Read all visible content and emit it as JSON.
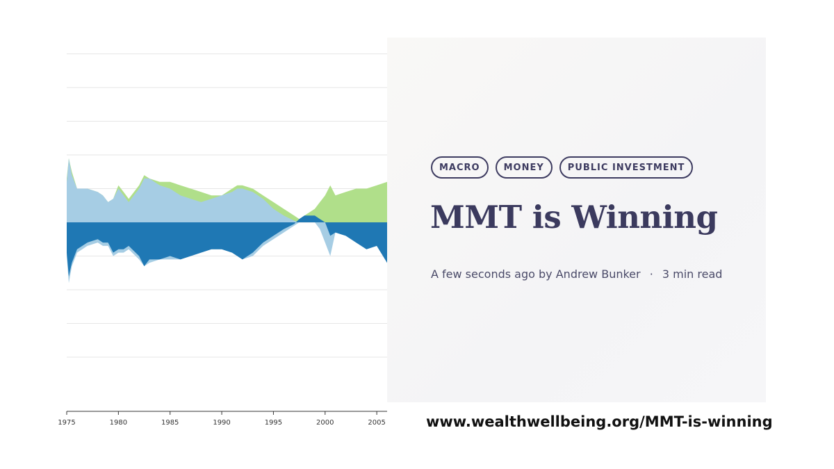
{
  "card": {
    "tags": [
      "MACRO",
      "MONEY",
      "PUBLIC INVESTMENT"
    ],
    "title": "MMT is Winning",
    "meta": {
      "time": "A few seconds ago",
      "author_prefix": "by",
      "author": "Andrew Bunker",
      "separator": "·",
      "read_time": "3 min read"
    }
  },
  "url": "www.wealthwellbeing.org/MMT-is-winning",
  "colors": {
    "upper_green": "#b0df8a",
    "upper_lightblue": "#a6cde4",
    "lower_darkblue": "#1f78b4",
    "lower_lightblue": "#a6cde4",
    "text_dark": "#3b3a5e"
  },
  "chart_data": {
    "type": "area",
    "x_tick_labels": [
      "1975",
      "1980",
      "1985",
      "1990",
      "1995",
      "2000",
      "2005"
    ],
    "x_ticks": [
      1975,
      1980,
      1985,
      1990,
      1995,
      2000,
      2005
    ],
    "xlim": [
      1975,
      2006
    ],
    "ylim": [
      -5,
      5
    ],
    "grid": true,
    "x": [
      1975,
      1975.2,
      1975.5,
      1976,
      1977,
      1978,
      1978.5,
      1979,
      1979.5,
      1980,
      1980.5,
      1981,
      1982,
      1982.5,
      1983,
      1984,
      1985,
      1986,
      1987,
      1988,
      1989,
      1990,
      1991,
      1991.5,
      1992,
      1993,
      1994,
      1995,
      1996,
      1997,
      1997.5,
      1998,
      1999,
      1999.5,
      2000,
      2000.5,
      2001,
      2002,
      2003,
      2004,
      2005,
      2006
    ],
    "series": [
      {
        "values": [
          1.2,
          1.9,
          1.4,
          1.0,
          1.0,
          0.9,
          0.8,
          0.6,
          0.7,
          1.0,
          0.8,
          0.6,
          1.0,
          1.3,
          1.3,
          1.1,
          1.0,
          0.8,
          0.7,
          0.6,
          0.7,
          0.8,
          0.9,
          1.0,
          1.0,
          0.9,
          0.7,
          0.4,
          0.2,
          0.05,
          0,
          0,
          0,
          0,
          0,
          0,
          0,
          0,
          0,
          0,
          0,
          0
        ]
      },
      {
        "values": [
          1.3,
          1.9,
          1.5,
          1.0,
          1.0,
          0.9,
          0.8,
          0.6,
          0.7,
          1.1,
          0.9,
          0.7,
          1.1,
          1.4,
          1.3,
          1.2,
          1.2,
          1.1,
          1.0,
          0.9,
          0.8,
          0.8,
          1.0,
          1.1,
          1.1,
          1.0,
          0.8,
          0.6,
          0.4,
          0.2,
          0.1,
          0.2,
          0.4,
          0.6,
          0.8,
          1.1,
          0.8,
          0.9,
          1.0,
          1.0,
          1.1,
          1.2
        ]
      },
      {
        "values": [
          -0.9,
          -1.6,
          -1.2,
          -0.8,
          -0.6,
          -0.5,
          -0.6,
          -0.6,
          -0.9,
          -0.8,
          -0.8,
          -0.7,
          -1.0,
          -1.3,
          -1.1,
          -1.1,
          -1.0,
          -1.1,
          -1.0,
          -0.9,
          -0.8,
          -0.8,
          -0.9,
          -1.0,
          -1.1,
          -0.9,
          -0.6,
          -0.4,
          -0.2,
          -0.05,
          0.1,
          0.2,
          0.2,
          0.1,
          0,
          -0.4,
          -0.3,
          -0.4,
          -0.6,
          -0.8,
          -0.7,
          -1.2
        ]
      },
      {
        "values": [
          -1.0,
          -1.8,
          -1.3,
          -0.9,
          -0.7,
          -0.6,
          -0.7,
          -0.7,
          -1.0,
          -0.9,
          -0.9,
          -0.8,
          -1.1,
          -1.3,
          -1.2,
          -1.1,
          -1.1,
          -1.1,
          -1.0,
          -0.9,
          -0.8,
          -0.8,
          -0.9,
          -1.0,
          -1.1,
          -1.0,
          -0.7,
          -0.5,
          -0.3,
          -0.1,
          0,
          0,
          0,
          -0.2,
          -0.6,
          -1.0,
          -0.3,
          -0.4,
          -0.6,
          -0.8,
          -0.7,
          -1.2
        ]
      }
    ]
  }
}
